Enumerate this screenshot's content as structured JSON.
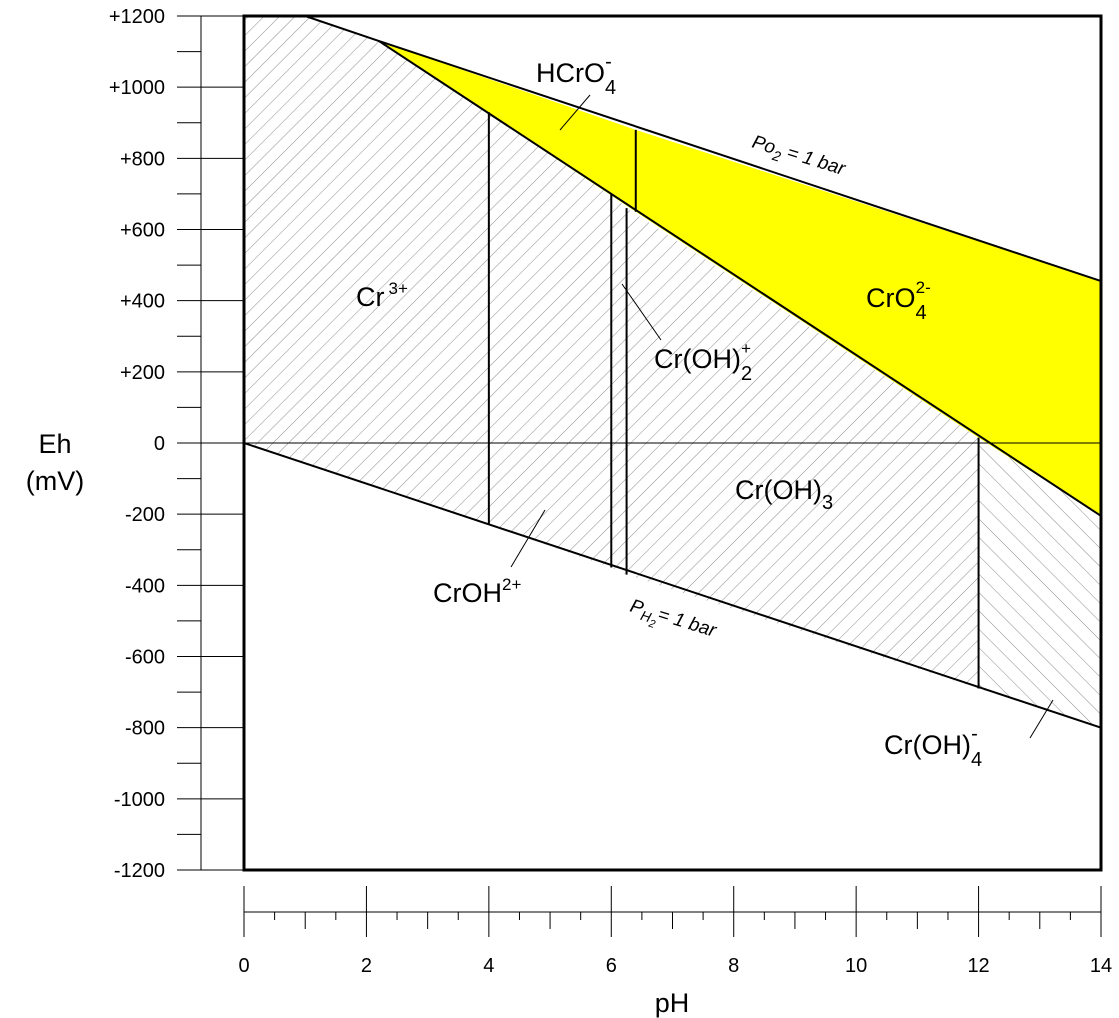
{
  "colors": {
    "chromate_fill": "#ffff00",
    "line": "#000000",
    "hatch": "#8c8c8c",
    "background": "#ffffff"
  },
  "chart_data": {
    "type": "diagram",
    "xlabel": "pH",
    "ylabel_main": "Eh",
    "ylabel_unit": "(mV)",
    "xlim": [
      0,
      14
    ],
    "ylim": [
      -1200,
      1200
    ],
    "x_ticks": [
      "0",
      "2",
      "4",
      "6",
      "8",
      "10",
      "12",
      "14"
    ],
    "x_tick_values": [
      0,
      2,
      4,
      6,
      8,
      10,
      12,
      14
    ],
    "y_ticks": [
      "+1200",
      "+1000",
      "+800",
      "+600",
      "+400",
      "+200",
      "0",
      "-200",
      "-400",
      "-600",
      "-800",
      "-1000",
      "-1200"
    ],
    "y_tick_values": [
      1200,
      1000,
      800,
      600,
      400,
      200,
      0,
      -200,
      -400,
      -600,
      -800,
      -1000,
      -1200
    ],
    "fields": [
      {
        "id": "cr3",
        "name": "Cr 3+",
        "fill": "hatch",
        "polygon": [
          [
            0,
            0
          ],
          [
            0,
            1200
          ],
          [
            1,
            1200
          ],
          [
            2.2,
            1130
          ],
          [
            4,
            930
          ],
          [
            4,
            -230
          ]
        ]
      },
      {
        "id": "croh2",
        "name": "CrOH2+",
        "fill": "hatch",
        "polygon": [
          [
            4,
            -230
          ],
          [
            4,
            930
          ],
          [
            6,
            700
          ],
          [
            6,
            -350
          ]
        ]
      },
      {
        "id": "croh2plus",
        "name": "Cr(OH)2+",
        "fill": "hatch",
        "polygon": [
          [
            6,
            -350
          ],
          [
            6,
            700
          ],
          [
            6.25,
            660
          ],
          [
            6.25,
            -370
          ]
        ]
      },
      {
        "id": "croh3",
        "name": "Cr(OH)3",
        "fill": "hatch",
        "polygon": [
          [
            6.25,
            -370
          ],
          [
            6.25,
            660
          ],
          [
            12,
            15
          ],
          [
            12,
            -690
          ]
        ]
      },
      {
        "id": "croh4",
        "name": "Cr(OH)4-",
        "fill": "hatch-reverse",
        "polygon": [
          [
            12,
            -690
          ],
          [
            12,
            15
          ],
          [
            14,
            -205
          ],
          [
            14,
            -800
          ]
        ]
      },
      {
        "id": "hcro4",
        "name": "HCrO4-",
        "fill": "yellow",
        "polygon": [
          [
            2.2,
            1130
          ],
          [
            6.4,
            880
          ],
          [
            6.4,
            650
          ]
        ]
      },
      {
        "id": "cro4",
        "name": "CrO4 2-",
        "fill": "yellow",
        "polygon": [
          [
            6.4,
            880
          ],
          [
            14,
            455
          ],
          [
            14,
            -205
          ],
          [
            12,
            15
          ],
          [
            6.4,
            650
          ]
        ]
      }
    ],
    "lines": [
      {
        "name": "Po2 = 1 bar",
        "points": [
          [
            1,
            1200
          ],
          [
            2.2,
            1130
          ],
          [
            14,
            455
          ]
        ]
      },
      {
        "name": "PH2 = 1 bar",
        "points": [
          [
            0,
            0
          ],
          [
            14,
            -800
          ]
        ]
      },
      {
        "name": "chromate boundary",
        "points": [
          [
            2.2,
            1130
          ],
          [
            14,
            -205
          ]
        ]
      },
      {
        "name": "pH 4",
        "points": [
          [
            4,
            -230
          ],
          [
            4,
            930
          ]
        ]
      },
      {
        "name": "pH 6",
        "points": [
          [
            6,
            -350
          ],
          [
            6,
            700
          ]
        ]
      },
      {
        "name": "pH 6.25",
        "points": [
          [
            6.25,
            -370
          ],
          [
            6.25,
            660
          ]
        ]
      },
      {
        "name": "pH 6.4",
        "points": [
          [
            6.4,
            650
          ],
          [
            6.4,
            880
          ]
        ]
      },
      {
        "name": "pH 12",
        "points": [
          [
            12,
            -690
          ],
          [
            12,
            15
          ]
        ]
      },
      {
        "name": "Eh 0",
        "points": [
          [
            0,
            0
          ],
          [
            14,
            0
          ]
        ]
      }
    ],
    "labels": {
      "hcro4": {
        "base": "HCrO",
        "sub": "4",
        "sup": "-"
      },
      "cr3": {
        "base": "Cr",
        "sup": "3+"
      },
      "cro4": {
        "base": "CrO",
        "sub": "4",
        "sup": "2-"
      },
      "croh2plus": {
        "base": "Cr(OH)",
        "sub": "2",
        "sup": "+"
      },
      "croh3": {
        "base": "Cr(OH)",
        "sub": "3"
      },
      "croh2": {
        "base": "CrOH",
        "sup": "2+"
      },
      "croh4": {
        "base": "Cr(OH)",
        "sub": "4",
        "sup": "-"
      },
      "po2": {
        "p": "Po",
        "sub": "2",
        "rest": " = 1 bar"
      },
      "ph2": {
        "p": "P",
        "sub": "H",
        "sub2": "2",
        "rest": "= 1 bar"
      }
    }
  }
}
